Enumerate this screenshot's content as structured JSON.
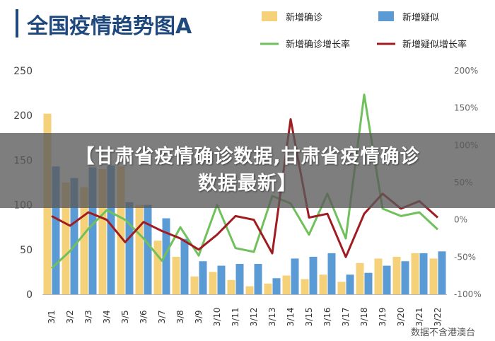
{
  "chart_data": {
    "type": "bar",
    "title": "全国疫情趋势图A",
    "categories": [
      "3/1",
      "3/2",
      "3/3",
      "3/4",
      "3/5",
      "3/6",
      "3/7",
      "3/8",
      "3/9",
      "3/10",
      "3/11",
      "3/12",
      "3/13",
      "3/14",
      "3/15",
      "3/16",
      "3/17",
      "3/18",
      "3/19",
      "3/20",
      "3/21",
      "3/22"
    ],
    "series": [
      {
        "name": "新增确诊",
        "kind": "bar",
        "axis": "left",
        "color": "#f5d27a",
        "values": [
          202,
          125,
          120,
          140,
          143,
          100,
          60,
          42,
          20,
          25,
          16,
          9,
          12,
          21,
          17,
          22,
          14,
          35,
          40,
          42,
          46,
          40
        ]
      },
      {
        "name": "新增疑似",
        "kind": "bar",
        "axis": "left",
        "color": "#5b9bd5",
        "values": [
          143,
          130,
          142,
          144,
          103,
          100,
          85,
          62,
          37,
          32,
          34,
          34,
          18,
          40,
          42,
          46,
          22,
          24,
          32,
          37,
          46,
          48
        ]
      },
      {
        "name": "新增确诊增长率",
        "kind": "line",
        "axis": "right",
        "color": "#70c15c",
        "values": [
          -65,
          -42,
          -12,
          13,
          0,
          -25,
          -55,
          -10,
          -48,
          20,
          -38,
          -43,
          32,
          22,
          -20,
          35,
          -25,
          168,
          15,
          5,
          10,
          -13
        ]
      },
      {
        "name": "新增疑似增长率",
        "kind": "line",
        "axis": "right",
        "color": "#a01c20",
        "values": [
          5,
          -8,
          10,
          0,
          -30,
          -3,
          -15,
          -25,
          -40,
          -20,
          5,
          0,
          -45,
          135,
          3,
          8,
          -50,
          8,
          35,
          15,
          25,
          3
        ]
      }
    ],
    "y_left": {
      "ticks": [
        0,
        50,
        100,
        150,
        200,
        250
      ],
      "min": 0,
      "max": 250
    },
    "y_right": {
      "ticks": [
        "-100%",
        "-50%",
        "0%",
        "50%",
        "100%",
        "150%",
        "200%"
      ],
      "min": -100,
      "max": 200
    },
    "legend": "top-right",
    "grid": false
  },
  "banner": {
    "line1": "【甘肃省疫情确诊数据,甘肃省疫情确诊",
    "line2": "数据最新】"
  },
  "watermark": "数据不含港澳台"
}
